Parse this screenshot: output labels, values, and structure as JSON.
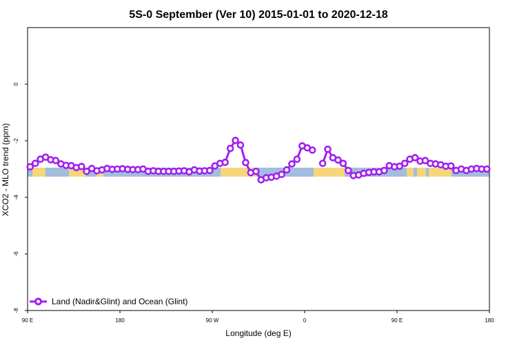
{
  "chart_data": {
    "type": "line",
    "title": "5S-0 September (Ver 10)   2015-01-01 to 2020-12-18",
    "xlabel": "Longitude (deg E)",
    "ylabel": "XCO2 - MLO trend (ppm)",
    "xlim": [
      90,
      540
    ],
    "ylim": [
      -8,
      2
    ],
    "x_ticks": [
      {
        "value": 90,
        "label": "90 E"
      },
      {
        "value": 180,
        "label": "180"
      },
      {
        "value": 270,
        "label": "90 W"
      },
      {
        "value": 360,
        "label": "0"
      },
      {
        "value": 450,
        "label": "90 E"
      },
      {
        "value": 540,
        "label": "180"
      }
    ],
    "y_ticks": [
      {
        "value": 0,
        "label": "0"
      },
      {
        "value": -2,
        "label": "-2"
      },
      {
        "value": -4,
        "label": "-4"
      },
      {
        "value": -6,
        "label": "-6"
      },
      {
        "value": -8,
        "label": "-8"
      }
    ],
    "grid": false,
    "legend_position": "bottom-left",
    "series": [
      {
        "name": "Land (Nadir&Glint) and Ocean (Glint)",
        "color": "#a020f0",
        "segments": [
          {
            "x": [
              92.5,
              97.5,
              102.5,
              107.5,
              112.5,
              117.5,
              122.5,
              127.5,
              132.5,
              137.5,
              142.5,
              147.5,
              152.5,
              157.5,
              162.5,
              167.5,
              172.5,
              177.5,
              182.5,
              187.5,
              192.5,
              197.5,
              202.5,
              207.5,
              212.5,
              217.5,
              222.5,
              227.5,
              232.5,
              237.5,
              242.5,
              247.5,
              252.5,
              257.5,
              262.5,
              267.5,
              272.5,
              277.5,
              282.5,
              287.5,
              292.5,
              297.5,
              302.5,
              307.5,
              312.5,
              317.5,
              322.5,
              327.5,
              332.5,
              337.5,
              342.5,
              347.5,
              352.5,
              357.5,
              362.5,
              367.5
            ],
            "y": [
              -2.92,
              -2.8,
              -2.65,
              -2.58,
              -2.67,
              -2.7,
              -2.82,
              -2.87,
              -2.88,
              -2.95,
              -2.91,
              -3.08,
              -2.98,
              -3.06,
              -3.03,
              -2.98,
              -3.01,
              -3.0,
              -2.99,
              -3.01,
              -3.02,
              -3.02,
              -3.0,
              -3.08,
              -3.06,
              -3.08,
              -3.08,
              -3.08,
              -3.08,
              -3.07,
              -3.06,
              -3.1,
              -3.03,
              -3.07,
              -3.06,
              -3.05,
              -2.89,
              -2.8,
              -2.76,
              -2.27,
              -1.99,
              -2.15,
              -2.77,
              -3.13,
              -3.08,
              -3.38,
              -3.31,
              -3.29,
              -3.25,
              -3.19,
              -3.03,
              -2.82,
              -2.65,
              -2.18,
              -2.25,
              -2.33
            ]
          },
          {
            "x": [
              377.5,
              382.5,
              387.5,
              392.5,
              397.5,
              402.5,
              407.5,
              412.5,
              417.5,
              422.5,
              427.5,
              432.5,
              437.5,
              442.5,
              447.5,
              452.5,
              457.5,
              462.5,
              467.5,
              472.5,
              477.5,
              482.5,
              487.5,
              492.5,
              497.5,
              502.5,
              507.5,
              512.5,
              517.5,
              522.5,
              527.5,
              532.5,
              537.5
            ],
            "y": [
              -2.8,
              -2.3,
              -2.6,
              -2.68,
              -2.8,
              -3.05,
              -3.23,
              -3.21,
              -3.15,
              -3.12,
              -3.1,
              -3.1,
              -3.05,
              -2.88,
              -2.92,
              -2.9,
              -2.8,
              -2.65,
              -2.6,
              -2.72,
              -2.7,
              -2.8,
              -2.82,
              -2.85,
              -2.9,
              -2.89,
              -3.05,
              -3.0,
              -3.05,
              -3.0,
              -2.98,
              -3.0,
              -3.0
            ]
          }
        ]
      }
    ]
  }
}
